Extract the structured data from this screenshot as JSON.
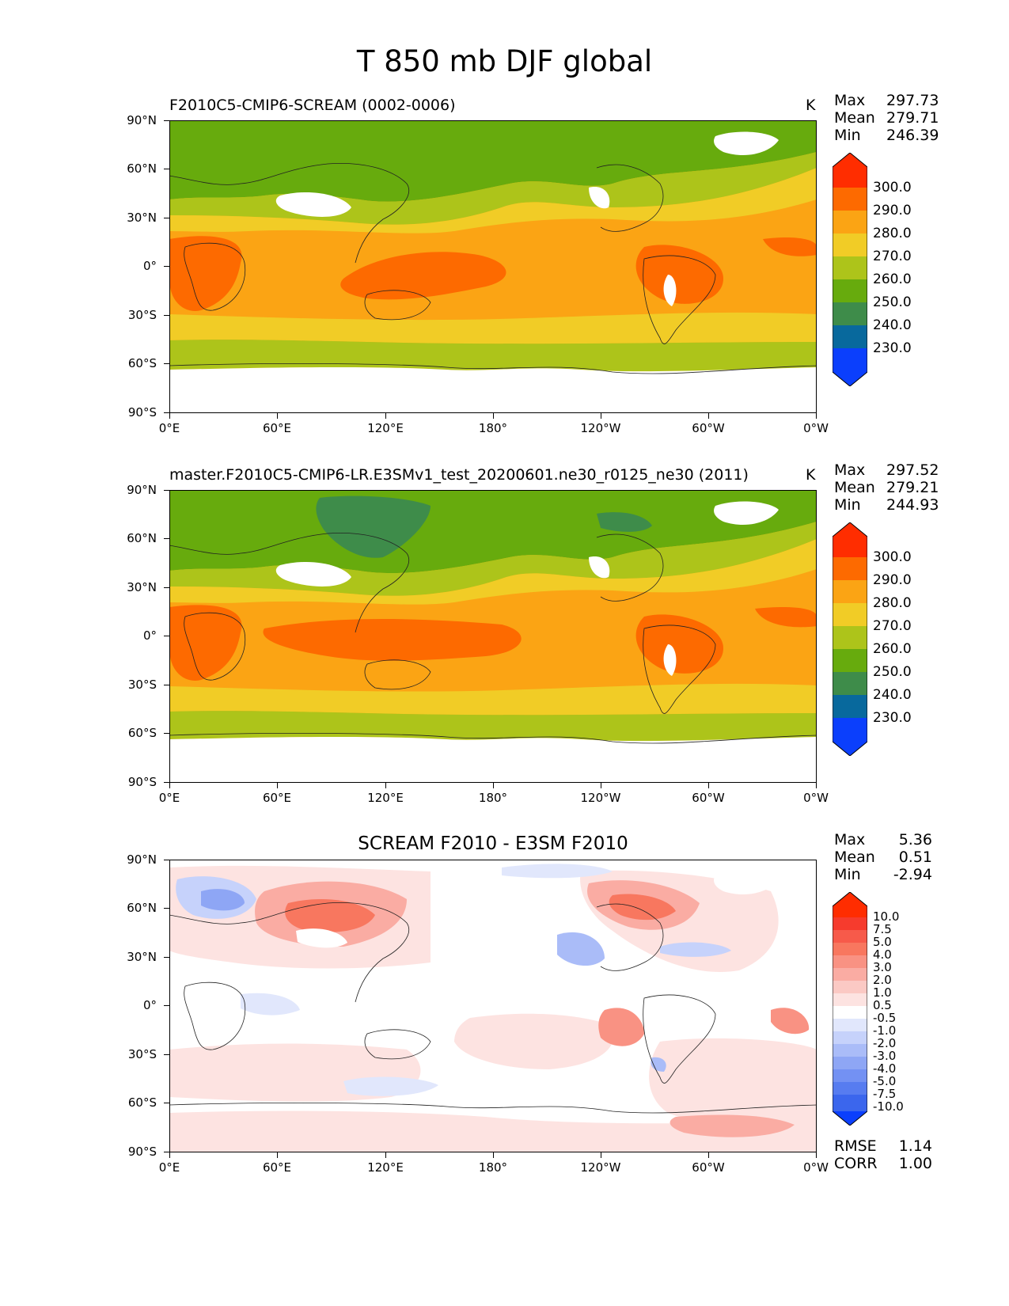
{
  "figure": {
    "title": "T 850 mb DJF global"
  },
  "axes": {
    "y_ticks": [
      "90°N",
      "60°N",
      "30°N",
      "0°",
      "30°S",
      "60°S",
      "90°S"
    ],
    "x_ticks": [
      "0°E",
      "60°E",
      "120°E",
      "180°",
      "120°W",
      "60°W",
      "0°W"
    ]
  },
  "panels": [
    {
      "title": "F2010C5-CMIP6-SCREAM (0002-0006)",
      "units": "K",
      "stats": {
        "max_label": "Max",
        "max": "297.73",
        "mean_label": "Mean",
        "mean": "279.71",
        "min_label": "Min",
        "min": "246.39"
      },
      "colorbar": {
        "labels": [
          "300.0",
          "290.0",
          "280.0",
          "270.0",
          "260.0",
          "250.0",
          "240.0",
          "230.0"
        ],
        "colors": [
          "#ff2d00",
          "#fd6a00",
          "#fba414",
          "#f1cc26",
          "#adc41a",
          "#67ab0d",
          "#3e8c4a",
          "#08699d",
          "#0b3ffc"
        ]
      }
    },
    {
      "title": "master.F2010C5-CMIP6-LR.E3SMv1_test_20200601.ne30_r0125_ne30 (2011)",
      "units": "K",
      "stats": {
        "max_label": "Max",
        "max": "297.52",
        "mean_label": "Mean",
        "mean": "279.21",
        "min_label": "Min",
        "min": "244.93"
      },
      "colorbar": {
        "labels": [
          "300.0",
          "290.0",
          "280.0",
          "270.0",
          "260.0",
          "250.0",
          "240.0",
          "230.0"
        ],
        "colors": [
          "#ff2d00",
          "#fd6a00",
          "#fba414",
          "#f1cc26",
          "#adc41a",
          "#67ab0d",
          "#3e8c4a",
          "#08699d",
          "#0b3ffc"
        ]
      }
    },
    {
      "title": "SCREAM F2010 - E3SM F2010",
      "units": "",
      "stats": {
        "max_label": "Max",
        "max": "5.36",
        "mean_label": "Mean",
        "mean": "0.51",
        "min_label": "Min",
        "min": "-2.94"
      },
      "colorbar": {
        "labels": [
          "10.0",
          "7.5",
          "5.0",
          "4.0",
          "3.0",
          "2.0",
          "1.0",
          "0.5",
          "-0.5",
          "-1.0",
          "-2.0",
          "-3.0",
          "-4.0",
          "-5.0",
          "-7.5",
          "-10.0"
        ],
        "colors": [
          "#ff2d00",
          "#f63b2d",
          "#f75a4a",
          "#f8775f",
          "#f99283",
          "#faaca3",
          "#fbc9c4",
          "#fde3e1",
          "#ffffff",
          "#e1e7fc",
          "#c6d2fb",
          "#aabcf8",
          "#8ea6f5",
          "#7391f3",
          "#577cf0",
          "#3b66ed",
          "#0b3ffc"
        ]
      },
      "metrics": {
        "rmse_label": "RMSE",
        "rmse": "1.14",
        "corr_label": "CORR",
        "corr": "1.00"
      }
    }
  ]
}
